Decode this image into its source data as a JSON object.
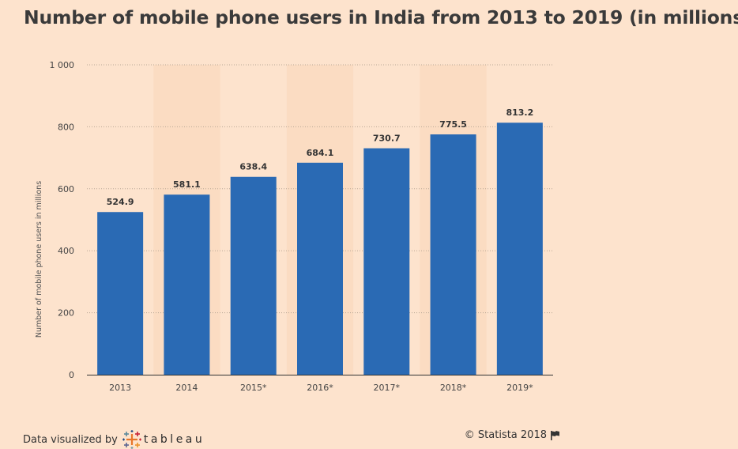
{
  "chart_data": {
    "type": "bar",
    "title": "Number of mobile phone users in India from 2013 to 2019 (in millions)",
    "ylabel": "Number of mobile phone users in millions",
    "xlabel": "",
    "categories": [
      "2013",
      "2014",
      "2015*",
      "2016*",
      "2017*",
      "2018*",
      "2019*"
    ],
    "values": [
      524.9,
      581.1,
      638.4,
      684.1,
      730.7,
      775.5,
      813.2
    ],
    "value_labels": [
      "524.9",
      "581.1",
      "638.4",
      "684.1",
      "730.7",
      "775.5",
      "813.2"
    ],
    "ylim": [
      0,
      1000
    ],
    "yticks": [
      0,
      200,
      400,
      600,
      800,
      1000
    ],
    "ytick_labels": [
      "0",
      "200",
      "400",
      "600",
      "800",
      "1 000"
    ],
    "grid": true,
    "legend": "none",
    "bar_color": "#2a6ab4"
  },
  "footer": {
    "data_visualized_by": "Data visualized by",
    "tableau_label": "tableau",
    "copyright": "© Statista 2018"
  },
  "icons": {
    "tableau": "tableau-plus-logo-icon",
    "flag": "flag-icon"
  }
}
